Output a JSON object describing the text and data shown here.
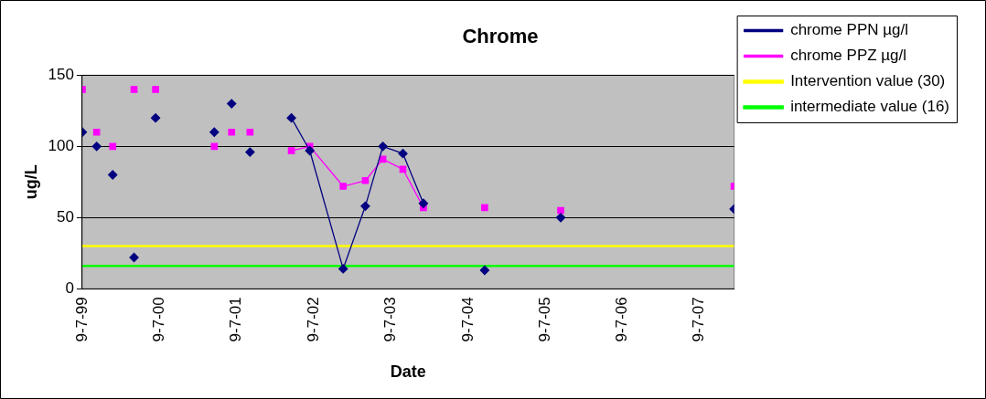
{
  "chart_data": {
    "type": "line",
    "title": "Chrome",
    "xlabel": "Date",
    "ylabel": "ug/L",
    "series": [
      {
        "name": "chrome PPN µg/l",
        "color": "#000080",
        "marker": "diamond",
        "x": [
          "2002-03-25",
          "2002-06-20",
          "2002-11-25",
          "2003-03-10",
          "2003-06-01",
          "2003-09-04",
          "2003-12-10"
        ],
        "values": [
          120,
          97,
          14,
          58,
          100,
          95,
          60
        ]
      },
      {
        "name": "chrome PPZ µg/l",
        "color": "#ff00ff",
        "marker": "square",
        "x": [
          "2002-03-25",
          "2002-06-20",
          "2002-11-25",
          "2003-03-10",
          "2003-06-01",
          "2003-09-04",
          "2003-12-10"
        ],
        "values": [
          97,
          100,
          72,
          76,
          91,
          84,
          57
        ]
      },
      {
        "type": "scatter",
        "color": "#000080",
        "marker": "diamond",
        "x": [
          "1999-07-09",
          "1999-09-15",
          "1999-11-30",
          "2000-03-10",
          "2000-06-20",
          "2001-03-25",
          "2001-06-15",
          "2001-09-10",
          "2004-09-25",
          "2005-09-20",
          "2007-12-20"
        ],
        "values": [
          110,
          100,
          80,
          22,
          120,
          110,
          130,
          96,
          13,
          50,
          56
        ]
      },
      {
        "type": "scatter",
        "color": "#ff00ff",
        "marker": "square",
        "x": [
          "1999-07-09",
          "1999-09-15",
          "1999-11-30",
          "2000-03-10",
          "2000-06-20",
          "2001-03-25",
          "2001-06-15",
          "2001-09-10",
          "2004-09-25",
          "2005-09-20",
          "2007-12-20"
        ],
        "values": [
          140,
          110,
          100,
          140,
          140,
          100,
          110,
          110,
          57,
          55,
          72
        ]
      }
    ],
    "ref_lines": [
      {
        "axis": "y",
        "value": 30,
        "label": "Intervention value (30)",
        "color": "#ffff00"
      },
      {
        "axis": "y",
        "value": 16,
        "label": "intermediate value (16)",
        "color": "#00ff00"
      }
    ],
    "xlim": [
      "1999-07-09",
      "2007-12-20"
    ],
    "xticks": [
      {
        "value": "1999-07-09",
        "label": "9-7-99"
      },
      {
        "value": "2000-07-09",
        "label": "9-7-00"
      },
      {
        "value": "2001-07-09",
        "label": "9-7-01"
      },
      {
        "value": "2002-07-09",
        "label": "9-7-02"
      },
      {
        "value": "2003-07-09",
        "label": "9-7-03"
      },
      {
        "value": "2004-07-09",
        "label": "9-7-04"
      },
      {
        "value": "2005-07-09",
        "label": "9-7-05"
      },
      {
        "value": "2006-07-09",
        "label": "9-7-06"
      },
      {
        "value": "2007-07-09",
        "label": "9-7-07"
      }
    ],
    "ylim": [
      0,
      150
    ],
    "yticks": [
      0,
      50,
      100,
      150
    ],
    "grid": "y",
    "legend": "right",
    "line_style": "solid"
  }
}
